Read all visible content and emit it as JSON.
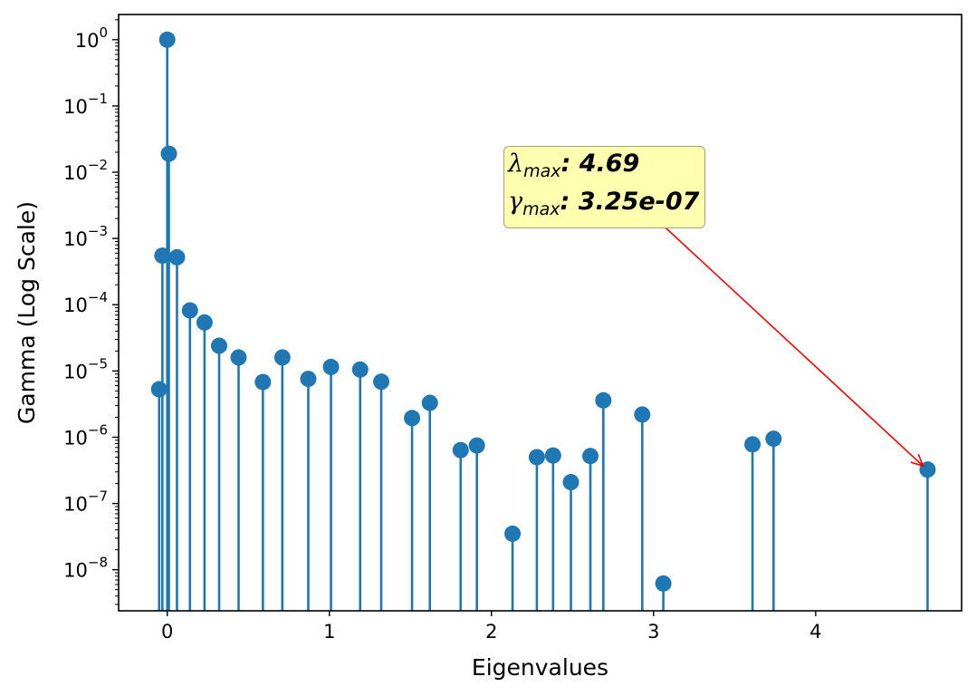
{
  "chart_data": {
    "type": "stem",
    "xlabel": "Eigenvalues",
    "ylabel": "Gamma (Log Scale)",
    "yscale": "log",
    "xlim": [
      -0.3,
      4.9
    ],
    "ylim": [
      2.4e-09,
      2.4
    ],
    "x_ticks": [
      0,
      1,
      2,
      3,
      4
    ],
    "x_tick_labels": [
      "0",
      "1",
      "2",
      "3",
      "4"
    ],
    "y_ticks": [
      1,
      0.1,
      0.01,
      0.001,
      0.0001,
      1e-05,
      1e-06,
      1e-07,
      1e-08
    ],
    "y_tick_labels": [
      {
        "base": "10",
        "exp": "0"
      },
      {
        "base": "10",
        "exp": "−1"
      },
      {
        "base": "10",
        "exp": "−2"
      },
      {
        "base": "10",
        "exp": "−3"
      },
      {
        "base": "10",
        "exp": "−4"
      },
      {
        "base": "10",
        "exp": "−5"
      },
      {
        "base": "10",
        "exp": "−6"
      },
      {
        "base": "10",
        "exp": "−7"
      },
      {
        "base": "10",
        "exp": "−8"
      }
    ],
    "grid": false,
    "series_color": "#1f77b4",
    "points": [
      {
        "x": -0.05,
        "y": 5.3e-06
      },
      {
        "x": -0.03,
        "y": 0.00055
      },
      {
        "x": 0.0,
        "y": 1.0
      },
      {
        "x": 0.01,
        "y": 0.019
      },
      {
        "x": 0.06,
        "y": 0.00052
      },
      {
        "x": 0.14,
        "y": 8.2e-05
      },
      {
        "x": 0.23,
        "y": 5.4e-05
      },
      {
        "x": 0.32,
        "y": 2.4e-05
      },
      {
        "x": 0.44,
        "y": 1.6e-05
      },
      {
        "x": 0.59,
        "y": 6.8e-06
      },
      {
        "x": 0.71,
        "y": 1.6e-05
      },
      {
        "x": 0.87,
        "y": 7.6e-06
      },
      {
        "x": 1.01,
        "y": 1.15e-05
      },
      {
        "x": 1.19,
        "y": 1.05e-05
      },
      {
        "x": 1.32,
        "y": 6.9e-06
      },
      {
        "x": 1.51,
        "y": 1.95e-06
      },
      {
        "x": 1.62,
        "y": 3.3e-06
      },
      {
        "x": 1.81,
        "y": 6.4e-07
      },
      {
        "x": 1.91,
        "y": 7.5e-07
      },
      {
        "x": 2.13,
        "y": 3.5e-08
      },
      {
        "x": 2.28,
        "y": 5e-07
      },
      {
        "x": 2.38,
        "y": 5.3e-07
      },
      {
        "x": 2.49,
        "y": 2.1e-07
      },
      {
        "x": 2.61,
        "y": 5.2e-07
      },
      {
        "x": 2.69,
        "y": 3.6e-06
      },
      {
        "x": 2.93,
        "y": 2.2e-06
      },
      {
        "x": 3.06,
        "y": 6.2e-09
      },
      {
        "x": 3.61,
        "y": 7.8e-07
      },
      {
        "x": 3.74,
        "y": 9.5e-07
      },
      {
        "x": 4.69,
        "y": 3.25e-07
      }
    ],
    "annotation": {
      "lambda_symbol": "λ",
      "lambda_sub": "max",
      "lambda_value": ": 4.69",
      "gamma_symbol": "γ",
      "gamma_sub": "max",
      "gamma_value": ": 3.25e-07",
      "box_color": "#ffffb0",
      "arrow_color": "#ff0000",
      "target": {
        "x": 4.69,
        "y": 3.25e-07
      }
    }
  }
}
